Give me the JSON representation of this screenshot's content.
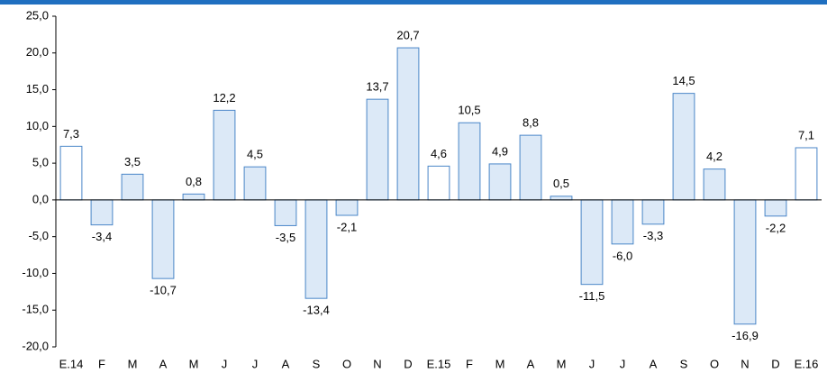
{
  "chart_data": {
    "type": "bar",
    "categories": [
      "E.14",
      "F",
      "M",
      "A",
      "M",
      "J",
      "J",
      "A",
      "S",
      "O",
      "N",
      "D",
      "E.15",
      "F",
      "M",
      "A",
      "M",
      "J",
      "J",
      "A",
      "S",
      "O",
      "N",
      "D",
      "E.16"
    ],
    "values": [
      7.3,
      -3.4,
      3.5,
      -10.7,
      0.8,
      12.2,
      4.5,
      -3.5,
      -13.4,
      -2.1,
      13.7,
      20.7,
      4.6,
      10.5,
      4.9,
      8.8,
      0.5,
      -11.5,
      -6.0,
      -3.3,
      14.5,
      4.2,
      -16.9,
      -2.2,
      7.1
    ],
    "value_labels": [
      "7,3",
      "-3,4",
      "3,5",
      "-10,7",
      "0,8",
      "12,2",
      "4,5",
      "-3,5",
      "-13,4",
      "-2,1",
      "13,7",
      "20,7",
      "4,6",
      "10,5",
      "4,9",
      "8,8",
      "0,5",
      "-11,5",
      "-6,0",
      "-3,3",
      "14,5",
      "4,2",
      "-16,9",
      "-2,2",
      "7,1"
    ],
    "colors": [
      "#ffffff",
      "#dce9f7",
      "#dce9f7",
      "#dce9f7",
      "#dce9f7",
      "#dce9f7",
      "#dce9f7",
      "#dce9f7",
      "#dce9f7",
      "#dce9f7",
      "#dce9f7",
      "#dce9f7",
      "#ffffff",
      "#dce9f7",
      "#dce9f7",
      "#dce9f7",
      "#dce9f7",
      "#dce9f7",
      "#dce9f7",
      "#dce9f7",
      "#dce9f7",
      "#dce9f7",
      "#dce9f7",
      "#dce9f7",
      "#ffffff"
    ],
    "edge_color": "#4a86c8",
    "ylim": [
      -20,
      25
    ],
    "yticks": [
      {
        "value": -20,
        "label": "-20,0"
      },
      {
        "value": -15,
        "label": "-15,0"
      },
      {
        "value": -10,
        "label": "-10,0"
      },
      {
        "value": -5,
        "label": "-5,0"
      },
      {
        "value": 0,
        "label": "0,0"
      },
      {
        "value": 5,
        "label": "5,0"
      },
      {
        "value": 10,
        "label": "10,0"
      },
      {
        "value": 15,
        "label": "15,0"
      },
      {
        "value": 20,
        "label": "20,0"
      },
      {
        "value": 25,
        "label": "25,0"
      }
    ],
    "grid": false
  }
}
